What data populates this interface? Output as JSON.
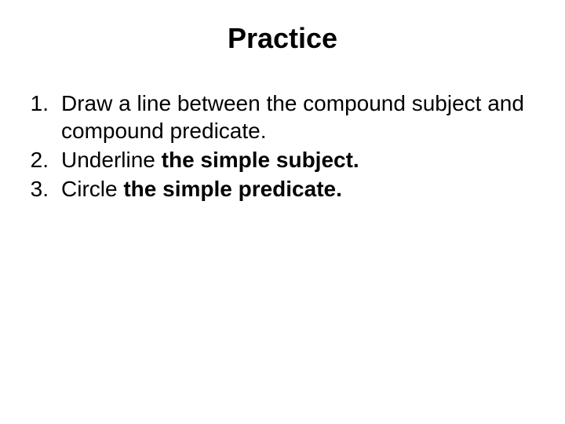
{
  "title": "Practice",
  "items": [
    {
      "num": "1.",
      "prefix": "Draw a line between the compound subject and compound predicate.",
      "bold": ""
    },
    {
      "num": "2.",
      "prefix": "Underline ",
      "bold": "the simple subject."
    },
    {
      "num": "3.",
      "prefix": "Circle ",
      "bold": "the simple predicate."
    }
  ],
  "colors": {
    "background": "#ffffff",
    "text": "#000000"
  },
  "typography": {
    "title_fontsize": 36,
    "title_weight": "bold",
    "body_fontsize": 28,
    "font_family": "Arial"
  }
}
